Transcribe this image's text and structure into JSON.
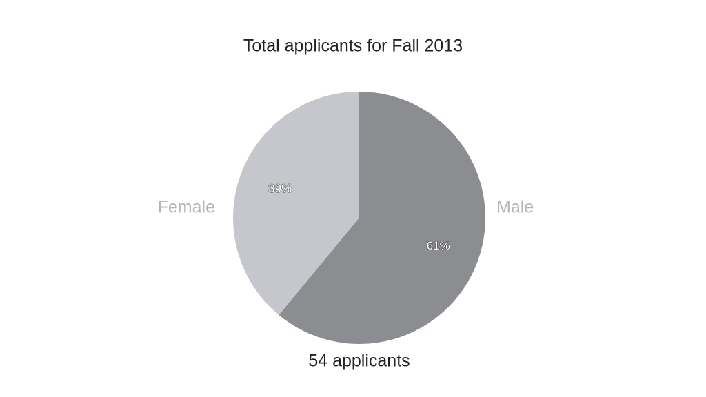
{
  "chart_data": {
    "type": "pie",
    "title": "Total applicants for Fall 2013",
    "categories": [
      "Male",
      "Female"
    ],
    "values": [
      61,
      39
    ],
    "value_labels": [
      "61%",
      "39%"
    ],
    "colors": [
      "#8b8d91",
      "#c5c7cd"
    ],
    "annotation": "54 applicants"
  }
}
